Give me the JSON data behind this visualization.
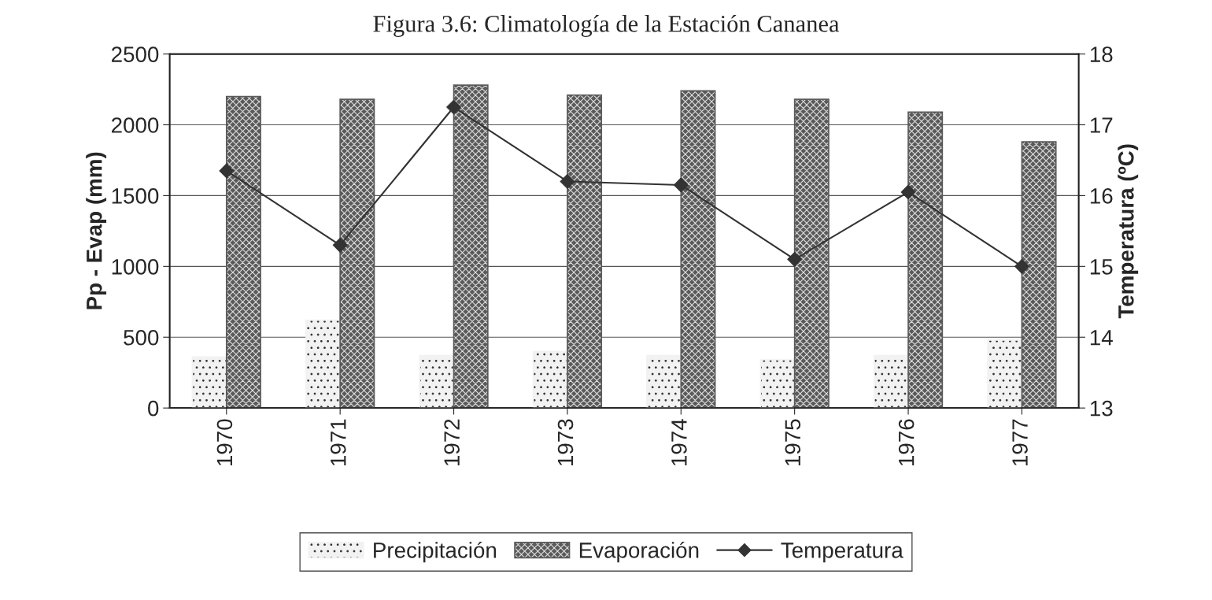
{
  "chart_data": {
    "type": "bar",
    "title": "Figura 3.6: Climatología de la Estación Cananea",
    "categories": [
      "1970",
      "1971",
      "1972",
      "1973",
      "1974",
      "1975",
      "1976",
      "1977"
    ],
    "series": [
      {
        "name": "Precipitación",
        "color": "#f2f2f2",
        "values": [
          360,
          620,
          370,
          400,
          370,
          340,
          370,
          480
        ]
      },
      {
        "name": "Evaporación",
        "color": "#5a5a5a",
        "values": [
          2200,
          2180,
          2280,
          2210,
          2240,
          2180,
          2090,
          1880
        ]
      },
      {
        "name": "Temperatura",
        "type": "line",
        "axis": "y2",
        "color": "#333333",
        "marker": "diamond",
        "values": [
          16.35,
          15.3,
          17.25,
          16.2,
          16.15,
          15.1,
          16.05,
          15.0
        ]
      }
    ],
    "ylabel": "Pp - Evap (mm)",
    "y2label": "Temperatura (ºC)",
    "ylim": [
      0,
      2500
    ],
    "yticks": [
      0,
      500,
      1000,
      1500,
      2000,
      2500
    ],
    "y2lim": [
      13,
      18
    ],
    "y2ticks": [
      13,
      14,
      15,
      16,
      17,
      18
    ],
    "grid": "y",
    "legend": "bottom"
  }
}
